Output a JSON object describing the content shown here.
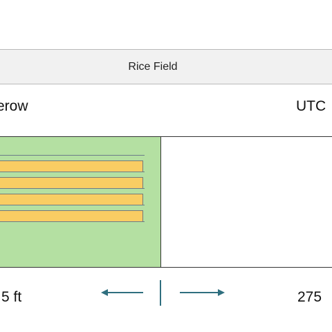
{
  "title": "Rice Field",
  "top_labels": {
    "left": "erow",
    "right": "UTC"
  },
  "bottom_labels": {
    "left": "5 ft",
    "right": "275"
  },
  "field_rows": [
    {
      "name": "row-1"
    },
    {
      "name": "row-2"
    },
    {
      "name": "row-3"
    },
    {
      "name": "row-4"
    }
  ],
  "colors": {
    "field_fill": "#b4e0a2",
    "bar_fill": "#f9cd63",
    "arrow": "#2f6f7f",
    "title_bar": "#f1f1f1"
  }
}
